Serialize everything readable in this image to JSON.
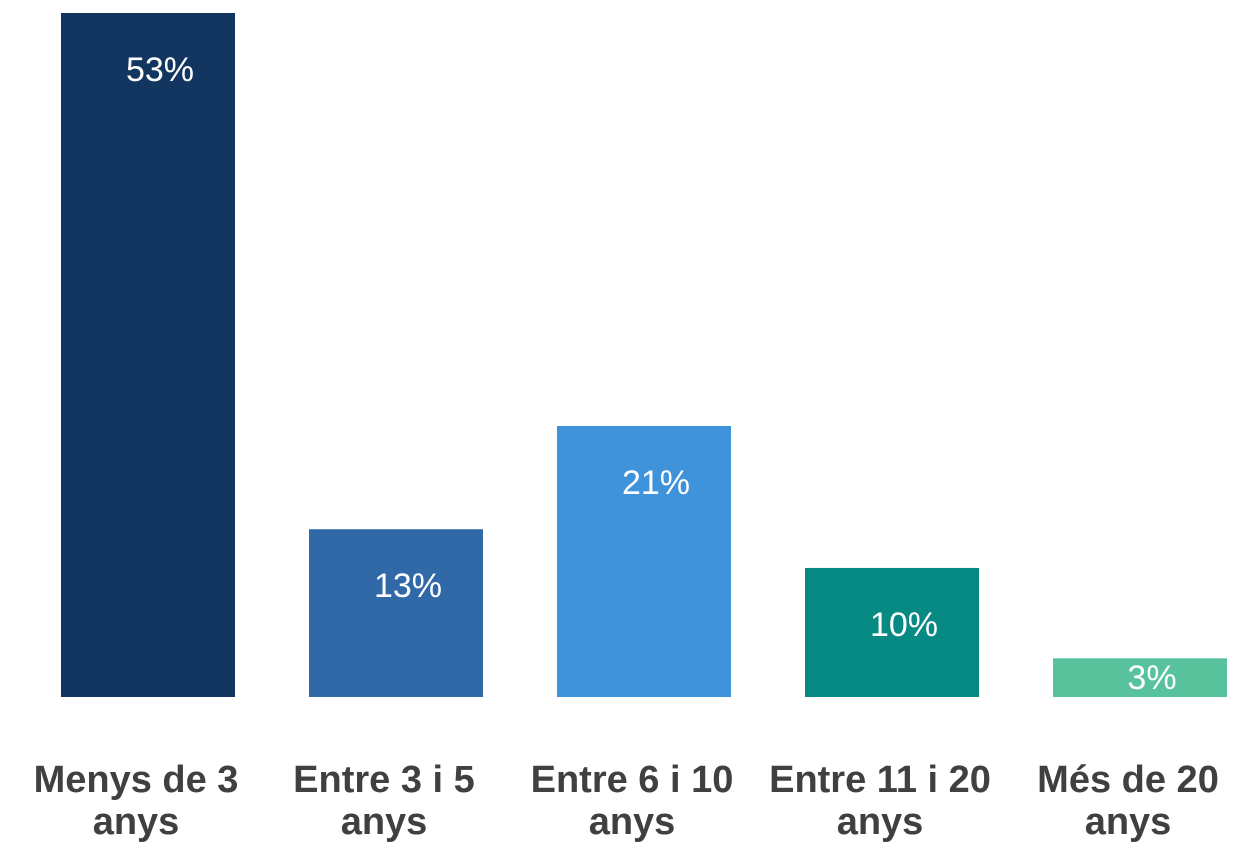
{
  "chart_data": {
    "type": "bar",
    "categories": [
      [
        "Menys de 3",
        "anys"
      ],
      [
        "Entre 3 i 5",
        "anys"
      ],
      [
        "Entre 6 i 10",
        "anys"
      ],
      [
        "Entre 11 i 20",
        "anys"
      ],
      [
        "Més de 20",
        "anys"
      ]
    ],
    "values": [
      53,
      13,
      21,
      10,
      3
    ],
    "value_labels": [
      "53%",
      "13%",
      "21%",
      "10%",
      "3%"
    ],
    "colors": [
      "#12365f",
      "#3068a8",
      "#3e93da",
      "#078a84",
      "#57c29c"
    ],
    "label_color": "#404040",
    "title": "",
    "xlabel": "",
    "ylabel": "",
    "ylim": [
      0,
      53
    ],
    "grid": false,
    "legend": "none"
  }
}
